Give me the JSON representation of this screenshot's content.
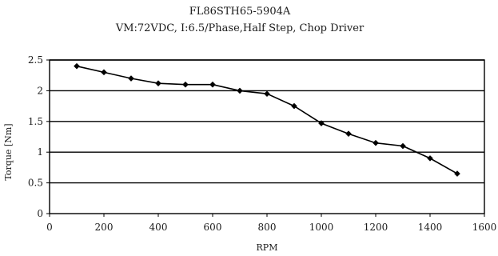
{
  "chart_data": {
    "type": "line",
    "title": "FL86STH65-5904A",
    "subtitle": "VM:72VDC, I:6.5/Phase,Half Step, Chop Driver",
    "xlabel": "RPM",
    "ylabel": "Torque [Nm]",
    "xlim": [
      0,
      1600
    ],
    "ylim": [
      0,
      2.5
    ],
    "x_ticks": [
      0,
      200,
      400,
      600,
      800,
      1000,
      1200,
      1400,
      1600
    ],
    "y_ticks": [
      0,
      0.5,
      1,
      1.5,
      2,
      2.5
    ],
    "x_tick_labels": [
      "0",
      "200",
      "400",
      "600",
      "800",
      "1000",
      "1200",
      "1400",
      "1600"
    ],
    "y_tick_labels": [
      "0",
      "0.5",
      "1",
      "1.5",
      "2",
      "2.5"
    ],
    "grid": "horizontal",
    "legend": "none",
    "series": [
      {
        "x": [
          100,
          200,
          300,
          400,
          500,
          600,
          700,
          800,
          900,
          1000,
          1100,
          1200,
          1300,
          1400,
          1500
        ],
        "values": [
          2.4,
          2.3,
          2.2,
          2.12,
          2.1,
          2.1,
          2.0,
          1.95,
          1.75,
          1.47,
          1.3,
          1.15,
          1.1,
          0.9,
          0.65
        ],
        "color": "#000000",
        "marker": "diamond"
      }
    ]
  }
}
